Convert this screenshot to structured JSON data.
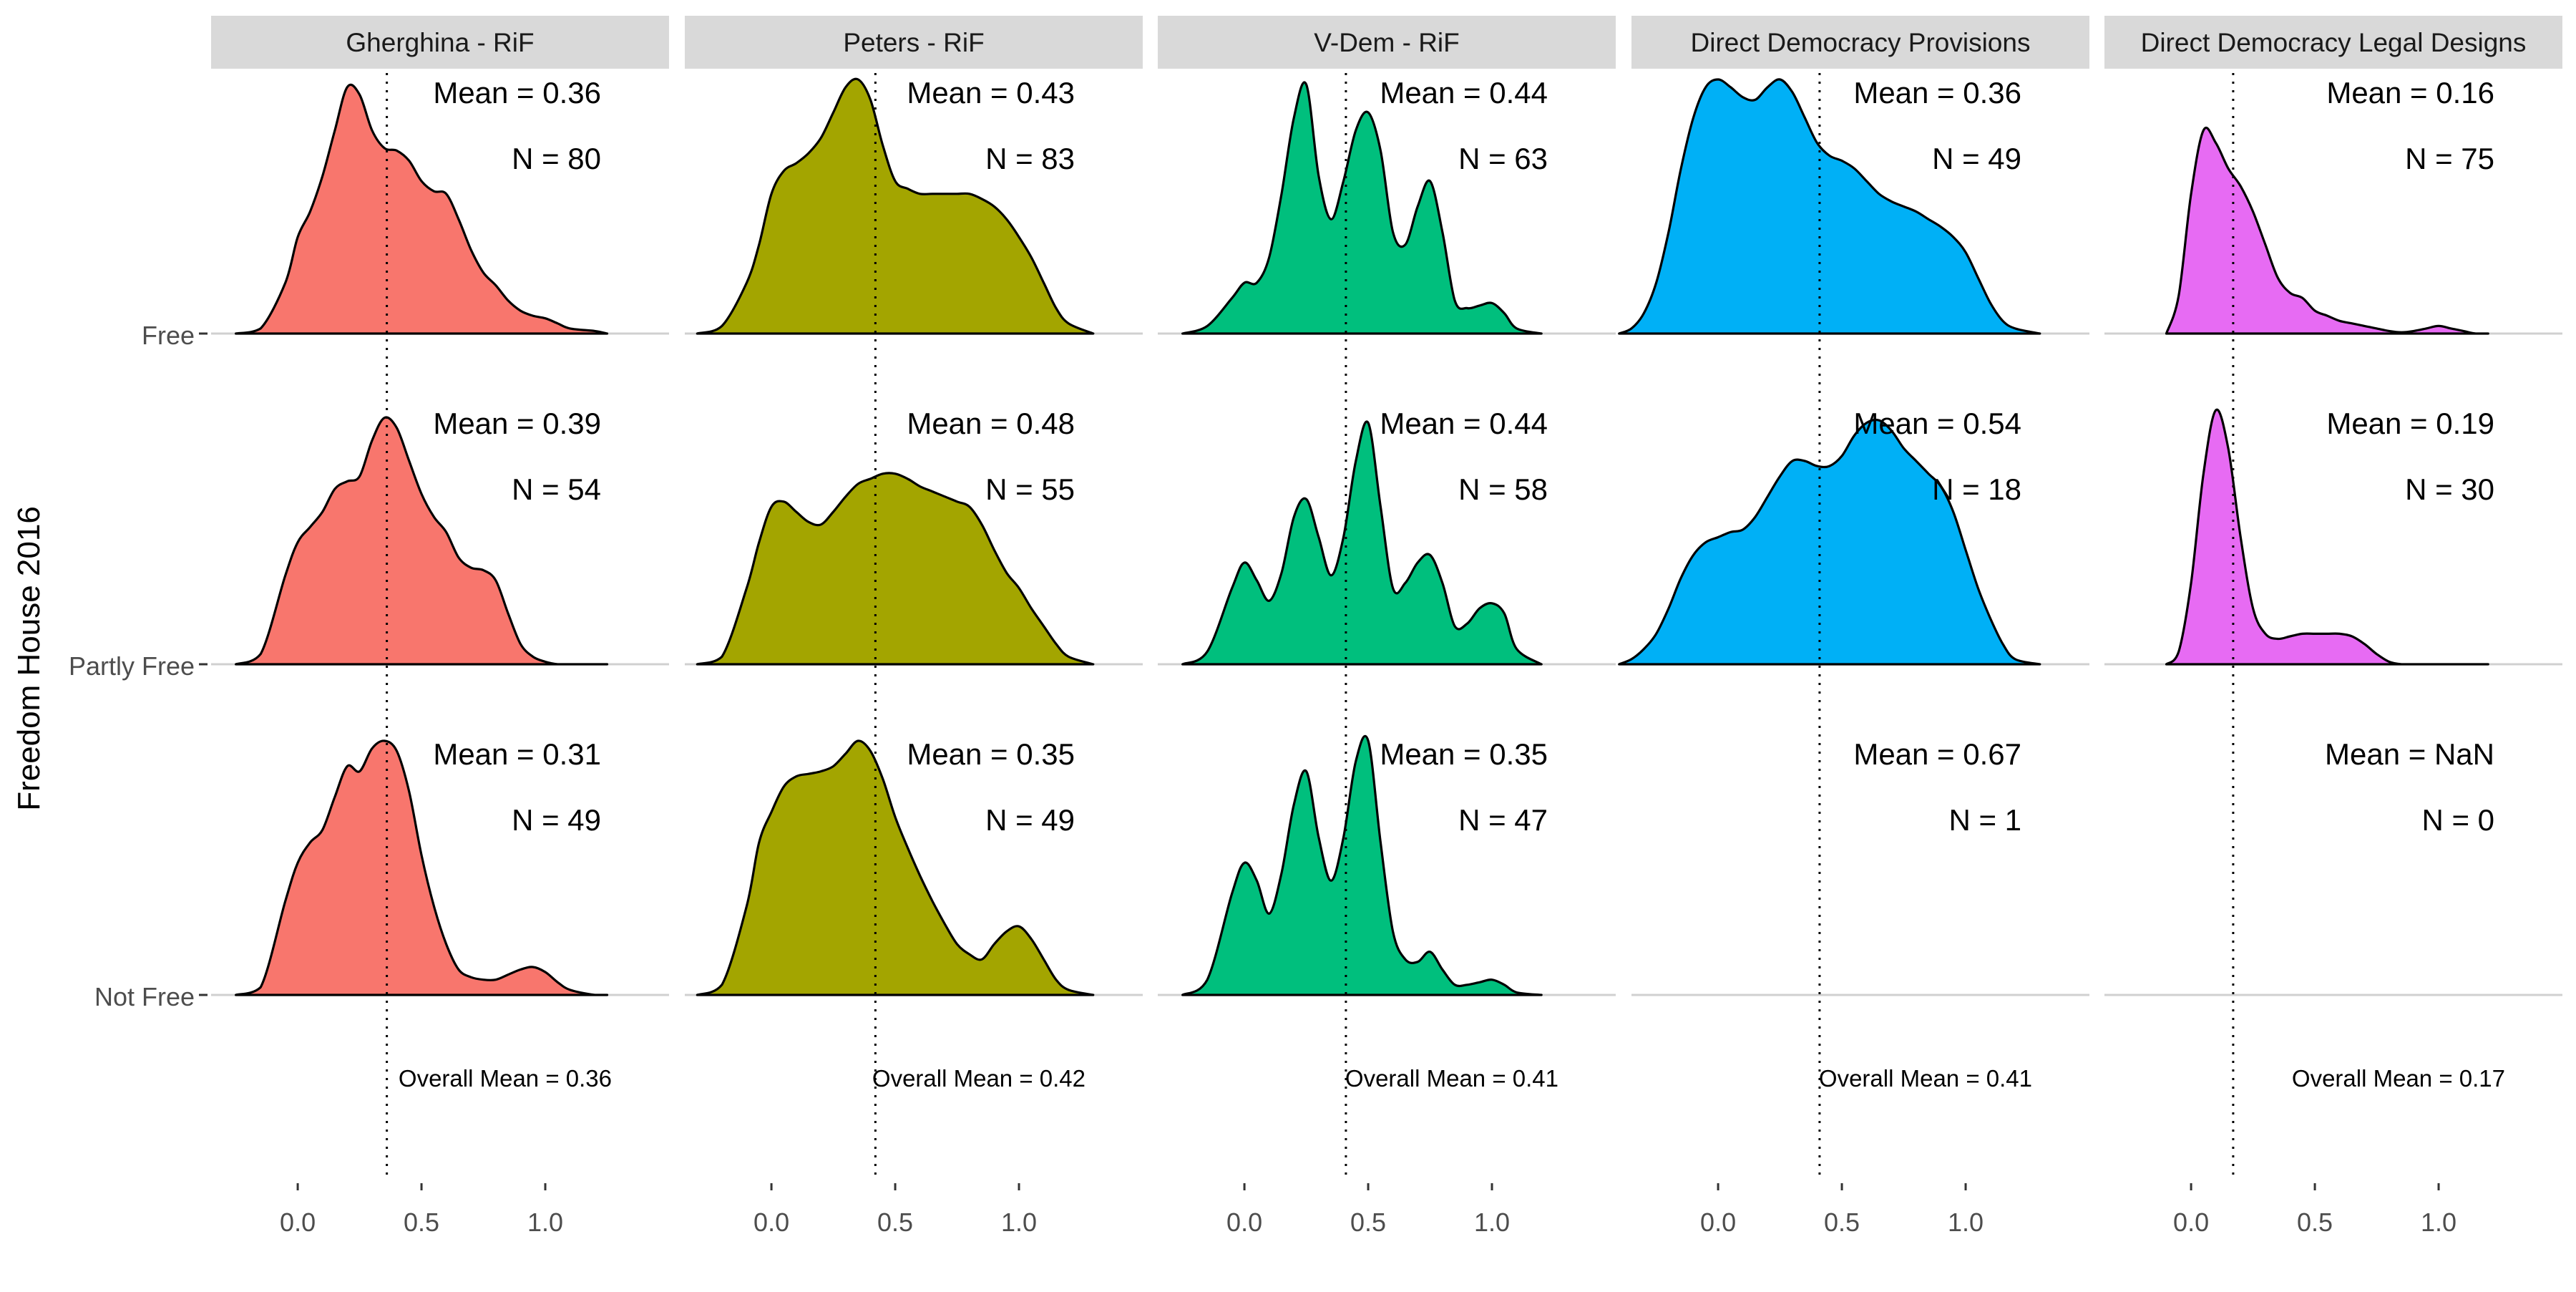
{
  "chart_data": {
    "type": "ridgeline",
    "ylabel": "Freedom House 2016",
    "xlabel": "",
    "xlim": [
      -0.35,
      1.5
    ],
    "x_ticks": [
      0.0,
      0.5,
      1.0
    ],
    "x_tick_labels": [
      "0.0",
      "0.5",
      "1.0"
    ],
    "row_labels": [
      "Free",
      "Partly Free",
      "Not Free"
    ],
    "grid": false,
    "panels": [
      {
        "title": "Gherghina - RiF",
        "color": "#F8766D",
        "overall_mean": 0.36,
        "overall_label": "Overall Mean = 0.36",
        "rows": [
          {
            "group": "Free",
            "mean_label": "Mean = 0.36",
            "n_label": "N = 80",
            "x": [
              -0.25,
              -0.15,
              -0.05,
              0.0,
              0.05,
              0.1,
              0.15,
              0.2,
              0.25,
              0.3,
              0.35,
              0.4,
              0.45,
              0.5,
              0.55,
              0.6,
              0.65,
              0.7,
              0.75,
              0.8,
              0.85,
              0.9,
              0.95,
              1.0,
              1.05,
              1.1,
              1.2,
              1.25
            ],
            "density": [
              0.0,
              0.02,
              0.2,
              0.38,
              0.48,
              0.62,
              0.8,
              0.97,
              0.94,
              0.8,
              0.73,
              0.72,
              0.68,
              0.6,
              0.56,
              0.55,
              0.45,
              0.33,
              0.24,
              0.19,
              0.13,
              0.09,
              0.07,
              0.06,
              0.04,
              0.02,
              0.01,
              0.0
            ]
          },
          {
            "group": "Partly Free",
            "mean_label": "Mean = 0.39",
            "n_label": "N = 54",
            "x": [
              -0.25,
              -0.15,
              -0.05,
              0.0,
              0.05,
              0.1,
              0.15,
              0.2,
              0.25,
              0.3,
              0.35,
              0.4,
              0.45,
              0.5,
              0.55,
              0.6,
              0.65,
              0.7,
              0.75,
              0.8,
              0.85,
              0.9,
              0.95,
              1.0,
              1.05,
              1.1,
              1.2,
              1.25
            ],
            "density": [
              0.0,
              0.04,
              0.35,
              0.48,
              0.54,
              0.6,
              0.69,
              0.72,
              0.74,
              0.88,
              0.97,
              0.93,
              0.8,
              0.67,
              0.58,
              0.52,
              0.42,
              0.38,
              0.37,
              0.33,
              0.2,
              0.08,
              0.03,
              0.01,
              0.0,
              0.0,
              0.0,
              0.0
            ]
          },
          {
            "group": "Not Free",
            "mean_label": "Mean = 0.31",
            "n_label": "N = 49",
            "x": [
              -0.25,
              -0.15,
              -0.05,
              0.0,
              0.05,
              0.1,
              0.15,
              0.2,
              0.25,
              0.3,
              0.35,
              0.4,
              0.45,
              0.5,
              0.55,
              0.6,
              0.65,
              0.7,
              0.75,
              0.8,
              0.85,
              0.9,
              0.95,
              1.0,
              1.05,
              1.1,
              1.2,
              1.25
            ],
            "density": [
              0.0,
              0.03,
              0.37,
              0.52,
              0.6,
              0.65,
              0.78,
              0.9,
              0.88,
              0.97,
              1.0,
              0.96,
              0.8,
              0.55,
              0.35,
              0.2,
              0.1,
              0.07,
              0.06,
              0.06,
              0.08,
              0.1,
              0.11,
              0.09,
              0.05,
              0.02,
              0.0,
              0.0
            ]
          }
        ]
      },
      {
        "title": "Peters - RiF",
        "color": "#A3A500",
        "overall_mean": 0.42,
        "overall_label": "Overall Mean = 0.42",
        "rows": [
          {
            "group": "Free",
            "mean_label": "Mean = 0.43",
            "n_label": "N = 83",
            "x": [
              -0.3,
              -0.2,
              -0.1,
              -0.05,
              0.0,
              0.05,
              0.1,
              0.15,
              0.2,
              0.25,
              0.3,
              0.35,
              0.4,
              0.45,
              0.5,
              0.55,
              0.6,
              0.65,
              0.7,
              0.75,
              0.8,
              0.85,
              0.9,
              0.95,
              1.0,
              1.05,
              1.1,
              1.15,
              1.2,
              1.3
            ],
            "density": [
              0.0,
              0.03,
              0.2,
              0.35,
              0.55,
              0.64,
              0.67,
              0.71,
              0.77,
              0.87,
              0.97,
              1.0,
              0.92,
              0.74,
              0.6,
              0.57,
              0.55,
              0.55,
              0.55,
              0.55,
              0.55,
              0.53,
              0.5,
              0.45,
              0.38,
              0.3,
              0.2,
              0.1,
              0.04,
              0.0
            ]
          },
          {
            "group": "Partly Free",
            "mean_label": "Mean = 0.48",
            "n_label": "N = 55",
            "x": [
              -0.3,
              -0.2,
              -0.1,
              -0.05,
              0.0,
              0.05,
              0.1,
              0.15,
              0.2,
              0.25,
              0.3,
              0.35,
              0.4,
              0.45,
              0.5,
              0.55,
              0.6,
              0.65,
              0.7,
              0.75,
              0.8,
              0.85,
              0.9,
              0.95,
              1.0,
              1.05,
              1.1,
              1.15,
              1.2,
              1.3
            ],
            "density": [
              0.0,
              0.03,
              0.3,
              0.48,
              0.62,
              0.64,
              0.6,
              0.56,
              0.55,
              0.6,
              0.66,
              0.71,
              0.73,
              0.75,
              0.75,
              0.73,
              0.7,
              0.68,
              0.66,
              0.64,
              0.62,
              0.55,
              0.45,
              0.36,
              0.3,
              0.22,
              0.15,
              0.08,
              0.03,
              0.0
            ]
          },
          {
            "group": "Not Free",
            "mean_label": "Mean = 0.35",
            "n_label": "N = 49",
            "x": [
              -0.3,
              -0.2,
              -0.1,
              -0.05,
              0.0,
              0.05,
              0.1,
              0.15,
              0.2,
              0.25,
              0.3,
              0.35,
              0.4,
              0.45,
              0.5,
              0.55,
              0.6,
              0.65,
              0.7,
              0.75,
              0.8,
              0.85,
              0.9,
              0.95,
              1.0,
              1.05,
              1.1,
              1.15,
              1.2,
              1.3
            ],
            "density": [
              0.0,
              0.04,
              0.35,
              0.6,
              0.72,
              0.82,
              0.86,
              0.87,
              0.88,
              0.9,
              0.95,
              1.0,
              0.96,
              0.85,
              0.7,
              0.58,
              0.47,
              0.37,
              0.28,
              0.2,
              0.16,
              0.14,
              0.2,
              0.25,
              0.27,
              0.22,
              0.14,
              0.06,
              0.02,
              0.0
            ]
          }
        ]
      },
      {
        "title": "V-Dem - RiF",
        "color": "#00BF7D",
        "overall_mean": 0.41,
        "overall_label": "Overall Mean = 0.41",
        "rows": [
          {
            "group": "Free",
            "mean_label": "Mean = 0.44",
            "n_label": "N = 63",
            "x": [
              -0.25,
              -0.15,
              -0.05,
              0.0,
              0.05,
              0.1,
              0.15,
              0.2,
              0.25,
              0.3,
              0.35,
              0.4,
              0.45,
              0.5,
              0.55,
              0.6,
              0.65,
              0.7,
              0.75,
              0.8,
              0.85,
              0.9,
              0.95,
              1.0,
              1.05,
              1.1,
              1.2
            ],
            "density": [
              0.0,
              0.03,
              0.14,
              0.2,
              0.2,
              0.3,
              0.55,
              0.85,
              0.98,
              0.62,
              0.45,
              0.6,
              0.8,
              0.87,
              0.72,
              0.4,
              0.35,
              0.5,
              0.6,
              0.4,
              0.13,
              0.1,
              0.11,
              0.12,
              0.08,
              0.02,
              0.0
            ]
          },
          {
            "group": "Partly Free",
            "mean_label": "Mean = 0.44",
            "n_label": "N = 58",
            "x": [
              -0.25,
              -0.15,
              -0.05,
              0.0,
              0.05,
              0.1,
              0.15,
              0.2,
              0.25,
              0.3,
              0.35,
              0.4,
              0.45,
              0.5,
              0.55,
              0.6,
              0.65,
              0.7,
              0.75,
              0.8,
              0.85,
              0.9,
              0.95,
              1.0,
              1.05,
              1.1,
              1.2
            ],
            "density": [
              0.0,
              0.05,
              0.3,
              0.4,
              0.33,
              0.25,
              0.36,
              0.58,
              0.65,
              0.5,
              0.35,
              0.5,
              0.8,
              0.95,
              0.62,
              0.3,
              0.32,
              0.4,
              0.43,
              0.32,
              0.15,
              0.16,
              0.22,
              0.24,
              0.2,
              0.06,
              0.0
            ]
          },
          {
            "group": "Not Free",
            "mean_label": "Mean = 0.35",
            "n_label": "N = 47",
            "x": [
              -0.25,
              -0.15,
              -0.05,
              0.0,
              0.05,
              0.1,
              0.15,
              0.2,
              0.25,
              0.3,
              0.35,
              0.4,
              0.45,
              0.5,
              0.55,
              0.6,
              0.65,
              0.7,
              0.75,
              0.8,
              0.85,
              0.9,
              0.95,
              1.0,
              1.05,
              1.1,
              1.2
            ],
            "density": [
              0.0,
              0.06,
              0.4,
              0.52,
              0.45,
              0.32,
              0.48,
              0.75,
              0.88,
              0.62,
              0.45,
              0.62,
              0.92,
              1.0,
              0.6,
              0.25,
              0.14,
              0.13,
              0.17,
              0.1,
              0.04,
              0.04,
              0.05,
              0.06,
              0.04,
              0.01,
              0.0
            ]
          }
        ]
      },
      {
        "title": "Direct Democracy Provisions",
        "color": "#00B0F6",
        "overall_mean": 0.41,
        "overall_label": "Overall Mean = 0.41",
        "rows": [
          {
            "group": "Free",
            "mean_label": "Mean = 0.36",
            "n_label": "N = 49",
            "x": [
              -0.4,
              -0.35,
              -0.3,
              -0.25,
              -0.2,
              -0.15,
              -0.1,
              -0.05,
              0.0,
              0.05,
              0.1,
              0.15,
              0.2,
              0.25,
              0.3,
              0.35,
              0.4,
              0.45,
              0.5,
              0.55,
              0.6,
              0.65,
              0.7,
              0.75,
              0.8,
              0.85,
              0.9,
              0.95,
              1.0,
              1.05,
              1.1,
              1.15,
              1.2,
              1.3
            ],
            "density": [
              0.0,
              0.02,
              0.08,
              0.2,
              0.4,
              0.65,
              0.85,
              0.97,
              1.0,
              0.97,
              0.93,
              0.92,
              0.97,
              1.0,
              0.95,
              0.85,
              0.75,
              0.7,
              0.68,
              0.65,
              0.6,
              0.55,
              0.52,
              0.5,
              0.48,
              0.45,
              0.42,
              0.38,
              0.32,
              0.22,
              0.12,
              0.05,
              0.02,
              0.0
            ]
          },
          {
            "group": "Partly Free",
            "mean_label": "Mean = 0.54",
            "n_label": "N = 18",
            "x": [
              -0.4,
              -0.35,
              -0.3,
              -0.25,
              -0.2,
              -0.15,
              -0.1,
              -0.05,
              0.0,
              0.05,
              0.1,
              0.15,
              0.2,
              0.25,
              0.3,
              0.35,
              0.4,
              0.45,
              0.5,
              0.55,
              0.6,
              0.65,
              0.7,
              0.75,
              0.8,
              0.85,
              0.9,
              0.95,
              1.0,
              1.05,
              1.1,
              1.15,
              1.2,
              1.3
            ],
            "density": [
              0.0,
              0.02,
              0.06,
              0.12,
              0.22,
              0.34,
              0.43,
              0.48,
              0.5,
              0.52,
              0.53,
              0.58,
              0.66,
              0.74,
              0.8,
              0.8,
              0.78,
              0.78,
              0.82,
              0.9,
              0.95,
              0.96,
              0.92,
              0.85,
              0.8,
              0.75,
              0.7,
              0.6,
              0.45,
              0.3,
              0.18,
              0.08,
              0.02,
              0.0
            ]
          },
          {
            "group": "Not Free",
            "mean_label": "Mean = 0.67",
            "n_label": "N = 1",
            "x": [],
            "density": []
          }
        ]
      },
      {
        "title": "Direct Democracy Legal Designs",
        "color": "#E76BF3",
        "overall_mean": 0.17,
        "overall_label": "Overall Mean = 0.17",
        "rows": [
          {
            "group": "Free",
            "mean_label": "Mean = 0.16",
            "n_label": "N = 75",
            "x": [
              -0.1,
              -0.05,
              0.0,
              0.05,
              0.1,
              0.15,
              0.2,
              0.25,
              0.3,
              0.35,
              0.4,
              0.45,
              0.5,
              0.55,
              0.6,
              0.65,
              0.7,
              0.75,
              0.8,
              0.85,
              0.9,
              0.95,
              1.0,
              1.05,
              1.1,
              1.15,
              1.2
            ],
            "density": [
              0.0,
              0.15,
              0.55,
              0.8,
              0.75,
              0.65,
              0.58,
              0.48,
              0.35,
              0.22,
              0.16,
              0.14,
              0.09,
              0.07,
              0.05,
              0.04,
              0.03,
              0.02,
              0.01,
              0.005,
              0.01,
              0.02,
              0.03,
              0.02,
              0.01,
              0.0,
              0.0
            ]
          },
          {
            "group": "Partly Free",
            "mean_label": "Mean = 0.19",
            "n_label": "N = 30",
            "x": [
              -0.1,
              -0.05,
              0.0,
              0.05,
              0.1,
              0.15,
              0.2,
              0.25,
              0.3,
              0.35,
              0.4,
              0.45,
              0.5,
              0.55,
              0.6,
              0.65,
              0.7,
              0.75,
              0.8,
              0.85,
              0.9,
              0.95,
              1.0,
              1.05,
              1.1,
              1.15,
              1.2
            ],
            "density": [
              0.0,
              0.05,
              0.32,
              0.75,
              1.0,
              0.85,
              0.5,
              0.22,
              0.12,
              0.1,
              0.11,
              0.12,
              0.12,
              0.12,
              0.12,
              0.11,
              0.08,
              0.04,
              0.01,
              0.0,
              0.0,
              0.0,
              0.0,
              0.0,
              0.0,
              0.0,
              0.0
            ]
          },
          {
            "group": "Not Free",
            "mean_label": "Mean = NaN",
            "n_label": "N = 0",
            "x": [],
            "density": []
          }
        ]
      }
    ]
  }
}
